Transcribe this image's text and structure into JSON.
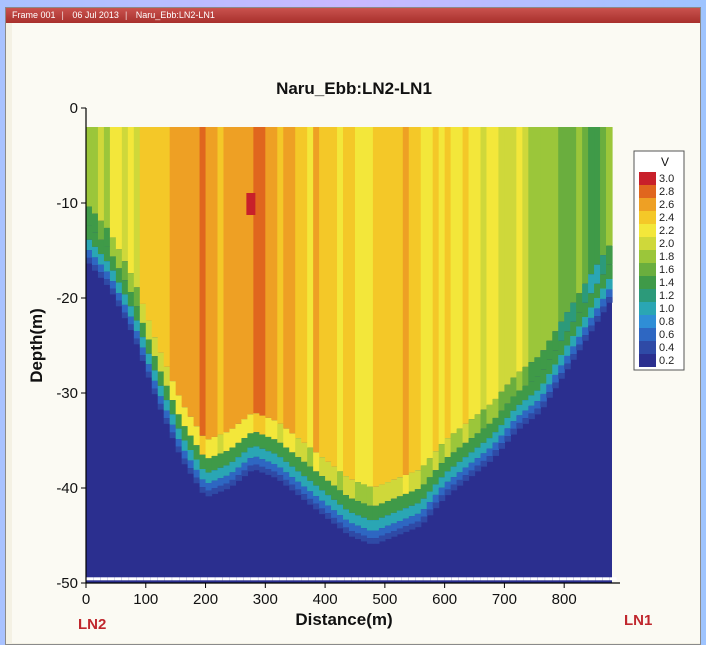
{
  "window": {
    "frame_label": "Frame 001",
    "date_label": "06 Jul 2013",
    "dataset_label": "Naru_Ebb:LN2-LN1"
  },
  "colors": {
    "titlebar": "#b33a36",
    "marker_red": "#c0272d",
    "seabed": "#2b2f8f"
  },
  "chart_data": {
    "type": "heatmap",
    "title": "Naru_Ebb:LN2-LN1",
    "xlabel": "Distance(m)",
    "ylabel": "Depth(m)",
    "xlim": [
      0,
      880
    ],
    "ylim": [
      -50,
      0
    ],
    "x_ticks": [
      0,
      100,
      200,
      300,
      400,
      500,
      600,
      700,
      800
    ],
    "y_ticks": [
      0,
      -10,
      -20,
      -30,
      -40,
      -50
    ],
    "colorbar": {
      "title": "V",
      "levels": [
        3.0,
        2.8,
        2.6,
        2.4,
        2.2,
        2.0,
        1.8,
        1.6,
        1.4,
        1.2,
        1.0,
        0.8,
        0.6,
        0.4,
        0.2
      ],
      "level_labels": [
        "3.0",
        "2.8",
        "2.6",
        "2.4",
        "2.2",
        "2.0",
        "1.8",
        "1.6",
        "1.4",
        "1.2",
        "1.0",
        "0.8",
        "0.6",
        "0.4",
        "0.2"
      ],
      "colors": [
        "#c8202a",
        "#e0661e",
        "#eea024",
        "#f4c828",
        "#f3e73a",
        "#cfd83a",
        "#9bc63a",
        "#6aae3e",
        "#3f9a48",
        "#2c9a7a",
        "#2aa6b4",
        "#2f8ed6",
        "#2e67c2",
        "#2f4aa6",
        "#2b2f8f"
      ]
    },
    "seabed_profile": {
      "x": [
        0,
        40,
        80,
        120,
        160,
        200,
        240,
        280,
        320,
        360,
        400,
        440,
        480,
        520,
        560,
        600,
        640,
        680,
        720,
        760,
        800,
        840,
        880
      ],
      "depth": [
        -16,
        -19,
        -24,
        -31,
        -37,
        -41,
        -40,
        -38,
        -39,
        -41,
        -43,
        -45,
        -46,
        -45,
        -44,
        -41,
        -39,
        -37,
        -34,
        -32,
        -28,
        -24,
        -20
      ]
    },
    "velocity_bands": {
      "x": [
        0,
        40,
        80,
        120,
        160,
        200,
        240,
        280,
        320,
        360,
        400,
        440,
        480,
        520,
        560,
        600,
        640,
        680,
        720,
        760,
        800,
        840,
        880
      ],
      "v": [
        1.8,
        2.0,
        2.2,
        2.4,
        2.6,
        2.6,
        2.5,
        2.7,
        2.5,
        2.4,
        2.4,
        2.3,
        2.3,
        2.4,
        2.3,
        2.3,
        2.2,
        2.1,
        2.0,
        1.8,
        1.6,
        1.5,
        1.6
      ]
    },
    "max_marker": {
      "x": 275,
      "depth": -10,
      "v": 3.0
    },
    "end_labels": {
      "left": "LN2",
      "right": "LN1"
    },
    "grid": false
  }
}
